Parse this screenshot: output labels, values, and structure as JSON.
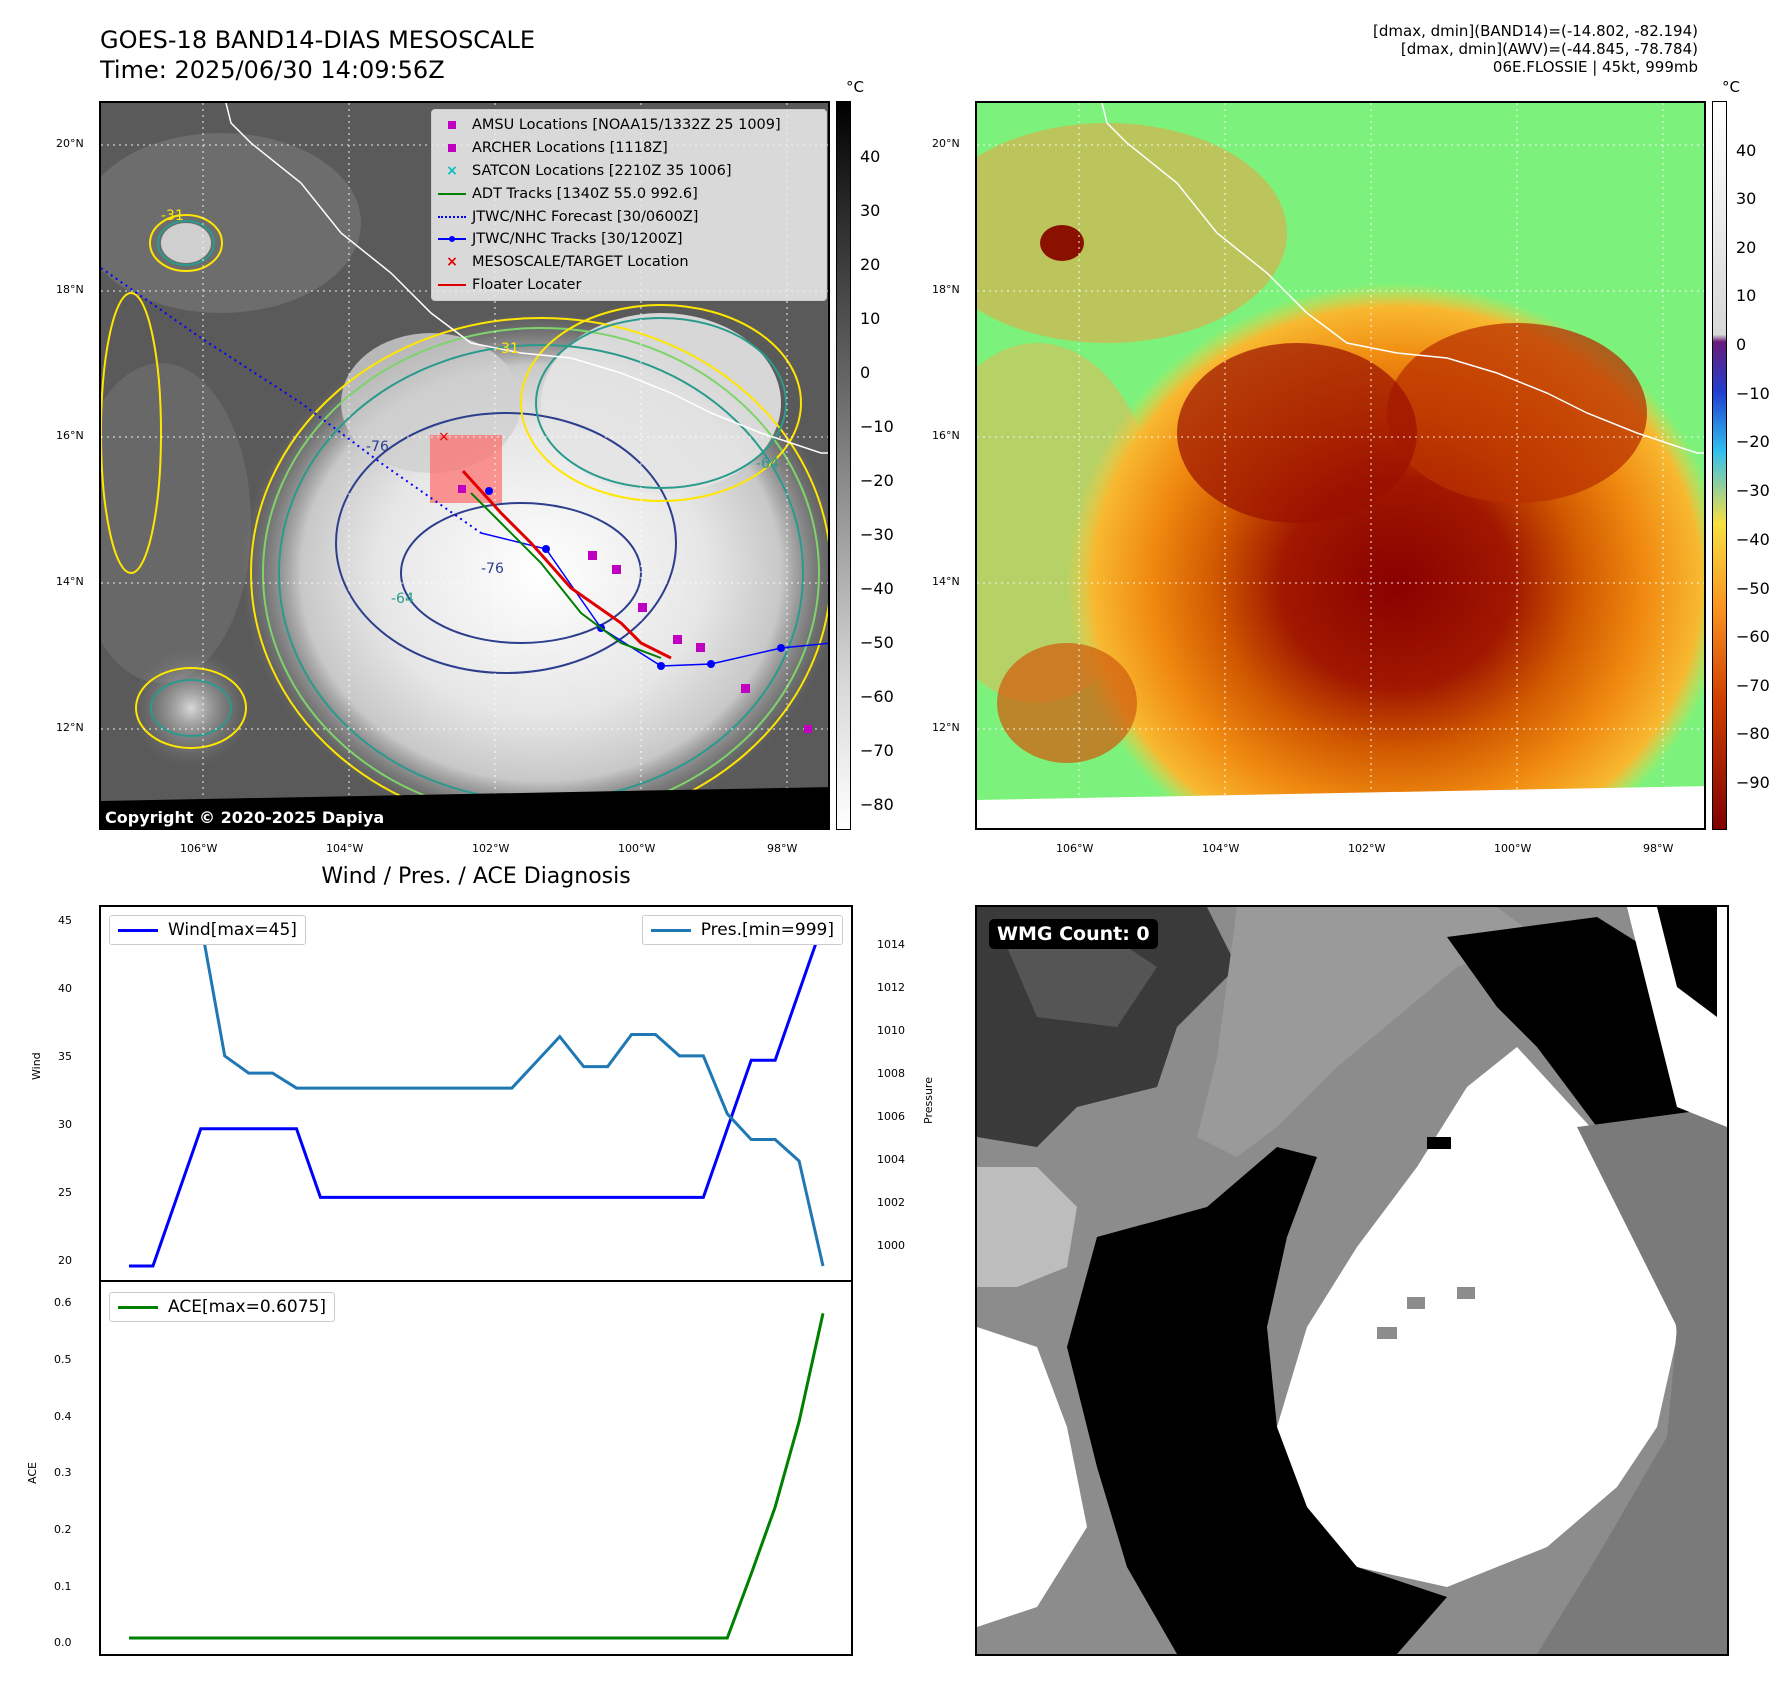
{
  "header": {
    "title_line1": "GOES-18 BAND14-DIAS MESOSCALE",
    "title_line2": "Time: 2025/06/30 14:09:56Z",
    "info_line1": "[dmax, dmin](BAND14)=(-14.802, -82.194)",
    "info_line2": "[dmax, dmin](AWV)=(-44.845, -78.784)",
    "info_line3": "06E.FLOSSIE | 45kt, 999mb"
  },
  "map_axes": {
    "lat_ticks": [
      "20°N",
      "18°N",
      "16°N",
      "14°N",
      "12°N"
    ],
    "lon_ticks": [
      "106°W",
      "104°W",
      "102°W",
      "100°W",
      "98°W"
    ]
  },
  "left_map": {
    "copyright": "Copyright © 2020-2025 Dapiya",
    "unit": "°C",
    "colorbar_ticks": [
      "40",
      "30",
      "20",
      "10",
      "0",
      "−10",
      "−20",
      "−30",
      "−40",
      "−50",
      "−60",
      "−70",
      "−80"
    ],
    "contour_labels": [
      "-76",
      "-76",
      "-64",
      "-64",
      "-31",
      "-31"
    ],
    "legend": [
      {
        "label": "AMSU Locations [NOAA15/1332Z 25 1009]",
        "symbol": "square",
        "color": "#c000c0"
      },
      {
        "label": "ARCHER Locations [1118Z]",
        "symbol": "square",
        "color": "#c000c0"
      },
      {
        "label": "SATCON Locations [2210Z 35 1006]",
        "symbol": "x",
        "color": "#00c0c0"
      },
      {
        "label": "ADT Tracks [1340Z 55.0 992.6]",
        "symbol": "line",
        "color": "#008000"
      },
      {
        "label": "JTWC/NHC Forecast [30/0600Z]",
        "symbol": "dotted",
        "color": "#0000ff"
      },
      {
        "label": "JTWC/NHC Tracks [30/1200Z]",
        "symbol": "line-dot",
        "color": "#0000ff"
      },
      {
        "label": "MESOSCALE/TARGET Location",
        "symbol": "x",
        "color": "#e00000"
      },
      {
        "label": "Floater Locater",
        "symbol": "line",
        "color": "#e00000"
      }
    ]
  },
  "right_map": {
    "unit": "°C",
    "colorbar_ticks": [
      "40",
      "30",
      "20",
      "10",
      "0",
      "−10",
      "−20",
      "−30",
      "−40",
      "−50",
      "−60",
      "−70",
      "−80",
      "−90"
    ]
  },
  "diagnosis": {
    "title": "Wind / Pres. / ACE Diagnosis",
    "wind_label": "Wind",
    "pressure_label": "Pressure",
    "ace_label": "ACE",
    "legend_wind": "Wind[max=45]",
    "legend_pres": "Pres.[min=999]",
    "legend_ace": "ACE[max=0.6075]",
    "wind_ticks": [
      "45",
      "40",
      "35",
      "30",
      "25",
      "20"
    ],
    "pres_ticks": [
      "1014",
      "1012",
      "1010",
      "1008",
      "1006",
      "1004",
      "1002",
      "1000"
    ],
    "ace_ticks": [
      "0.6",
      "0.5",
      "0.4",
      "0.3",
      "0.2",
      "0.1",
      "0.0"
    ],
    "colors": {
      "wind": "#0000ff",
      "pressure": "#1f77b4",
      "ace": "#008000"
    }
  },
  "chart_data": [
    {
      "type": "line",
      "name": "wind-pressure",
      "x": [
        0,
        1,
        2,
        3,
        4,
        5,
        6,
        7,
        8,
        9,
        10,
        11,
        12,
        13,
        14,
        15,
        16,
        17,
        18,
        19,
        20,
        21,
        22,
        23,
        24,
        25,
        26,
        27,
        28,
        29
      ],
      "series": [
        {
          "name": "Wind[max=45]",
          "axis": "left",
          "values": [
            20,
            20,
            25,
            30,
            30,
            30,
            30,
            30,
            25,
            25,
            25,
            25,
            25,
            25,
            25,
            25,
            25,
            25,
            25,
            25,
            25,
            25,
            25,
            25,
            25,
            30,
            35,
            35,
            40,
            45
          ]
        },
        {
          "name": "Pres.[min=999]",
          "axis": "right",
          "values": [
            1015,
            1015,
            1015,
            1015,
            1008.8,
            1008,
            1008,
            1007.3,
            1007.3,
            1007.3,
            1007.3,
            1007.3,
            1007.3,
            1007.3,
            1007.3,
            1007.3,
            1007.3,
            1008.5,
            1009.7,
            1008.3,
            1008.3,
            1009.8,
            1009.8,
            1008.8,
            1008.8,
            1006.1,
            1004.9,
            1004.9,
            1003.9,
            999
          ]
        }
      ],
      "ylim_left": [
        20,
        45
      ],
      "ylim_right": [
        999,
        1015
      ]
    },
    {
      "type": "line",
      "name": "ace",
      "x": [
        0,
        1,
        2,
        3,
        4,
        5,
        6,
        7,
        8,
        9,
        10,
        11,
        12,
        13,
        14,
        15,
        16,
        17,
        18,
        19,
        20,
        21,
        22,
        23,
        24,
        25,
        26,
        27,
        28,
        29
      ],
      "series": [
        {
          "name": "ACE[max=0.6075]",
          "values": [
            0,
            0,
            0,
            0,
            0,
            0,
            0,
            0,
            0,
            0,
            0,
            0,
            0,
            0,
            0,
            0,
            0,
            0,
            0,
            0,
            0,
            0,
            0,
            0,
            0,
            0,
            0.12,
            0.245,
            0.405,
            0.6075
          ]
        }
      ],
      "ylim": [
        0,
        0.64
      ]
    }
  ]
}
